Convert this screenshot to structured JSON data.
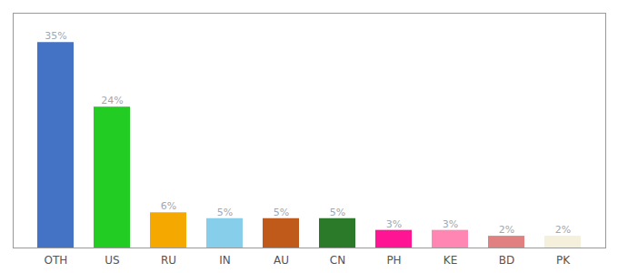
{
  "chart_data": {
    "type": "bar",
    "categories": [
      "OTH",
      "US",
      "RU",
      "IN",
      "AU",
      "CN",
      "PH",
      "KE",
      "BD",
      "PK"
    ],
    "values": [
      35,
      24,
      6,
      5,
      5,
      5,
      3,
      3,
      2,
      2
    ],
    "value_labels": [
      "35%",
      "24%",
      "6%",
      "5%",
      "5%",
      "5%",
      "3%",
      "3%",
      "2%",
      "2%"
    ],
    "colors": [
      "#4472c4",
      "#22cc22",
      "#f5a800",
      "#87ceeb",
      "#c05a1a",
      "#2a7a2a",
      "#ff1493",
      "#ff85b3",
      "#e08080",
      "#f5f0dc"
    ],
    "ylim": [
      0,
      40
    ],
    "data_labels": true,
    "tick_labels": "x"
  }
}
